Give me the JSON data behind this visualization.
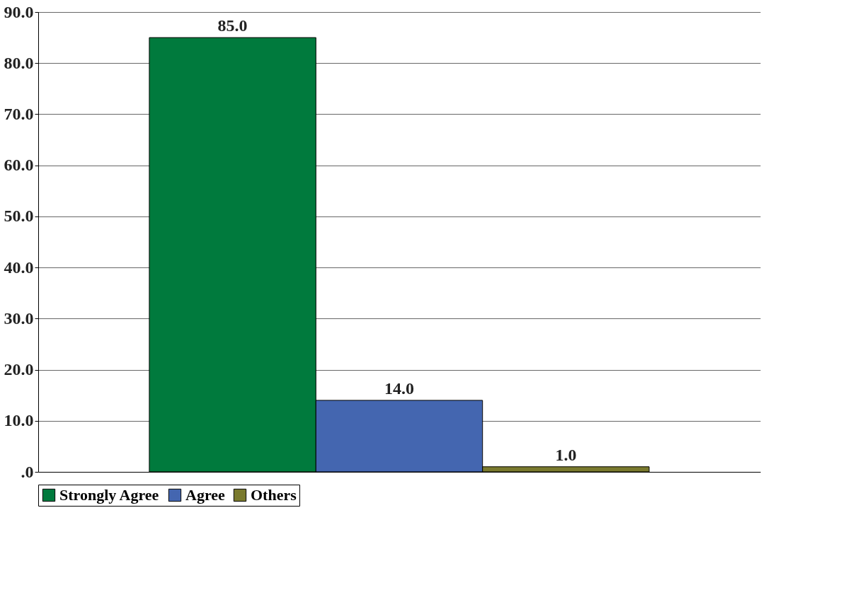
{
  "chart_data": {
    "type": "bar",
    "categories": [
      null
    ],
    "series": [
      {
        "name": "Strongly Agree",
        "color": "#007a3d",
        "values": [
          85
        ],
        "value_labels": [
          "85.0"
        ]
      },
      {
        "name": "Agree",
        "color": "#4466b0",
        "values": [
          14
        ],
        "value_labels": [
          "14.0"
        ]
      },
      {
        "name": "Others",
        "color": "#7a7a2e",
        "values": [
          1
        ],
        "value_labels": [
          "1.0"
        ]
      }
    ],
    "ylim": [
      0,
      90
    ],
    "yticks": [
      {
        "value": 0,
        "label": ".0"
      },
      {
        "value": 10,
        "label": "10.0"
      },
      {
        "value": 20,
        "label": "20.0"
      },
      {
        "value": 30,
        "label": "30.0"
      },
      {
        "value": 40,
        "label": "40.0"
      },
      {
        "value": 50,
        "label": "50.0"
      },
      {
        "value": 60,
        "label": "60.0"
      },
      {
        "value": 70,
        "label": "70.0"
      },
      {
        "value": 80,
        "label": "80.0"
      },
      {
        "value": 90,
        "label": "90.0"
      }
    ],
    "grid": "y",
    "legend": "bottom",
    "tick_labels": "y"
  }
}
